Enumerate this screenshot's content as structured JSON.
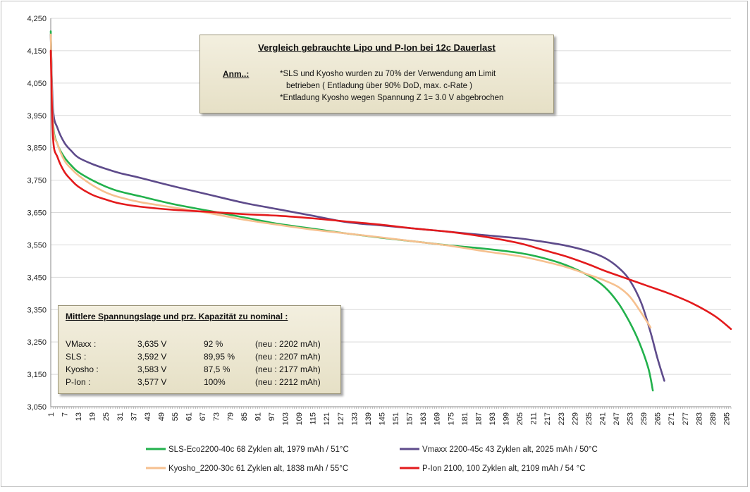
{
  "chart_data": {
    "type": "line",
    "title": "",
    "xlabel": "",
    "ylabel": "",
    "ylim": [
      3.05,
      4.25
    ],
    "xlim": [
      1,
      297
    ],
    "y_ticks": [
      "4,250",
      "4,150",
      "4,050",
      "3,950",
      "3,850",
      "3,750",
      "3,650",
      "3,550",
      "3,450",
      "3,350",
      "3,250",
      "3,150",
      "3,050"
    ],
    "y_tick_values": [
      4.25,
      4.15,
      4.05,
      3.95,
      3.85,
      3.75,
      3.65,
      3.55,
      3.45,
      3.35,
      3.25,
      3.15,
      3.05
    ],
    "x_ticks": [
      "1",
      "7",
      "13",
      "19",
      "25",
      "31",
      "37",
      "43",
      "49",
      "55",
      "61",
      "67",
      "73",
      "79",
      "85",
      "91",
      "97",
      "103",
      "109",
      "115",
      "121",
      "127",
      "133",
      "139",
      "145",
      "151",
      "157",
      "163",
      "169",
      "175",
      "181",
      "187",
      "193",
      "199",
      "205",
      "211",
      "217",
      "223",
      "229",
      "235",
      "241",
      "247",
      "253",
      "259",
      "265",
      "271",
      "277",
      "283",
      "289",
      "295"
    ],
    "grid": "horizontal",
    "legend_position": "bottom",
    "series": [
      {
        "name": "SLS-Eco2200-40c 68 Zyklen alt, 1979 mAh / 51°C",
        "color": "#22b14c",
        "points": [
          [
            1,
            4.21
          ],
          [
            2,
            3.93
          ],
          [
            4,
            3.86
          ],
          [
            7,
            3.82
          ],
          [
            10,
            3.795
          ],
          [
            13,
            3.775
          ],
          [
            19,
            3.75
          ],
          [
            25,
            3.73
          ],
          [
            31,
            3.715
          ],
          [
            40,
            3.7
          ],
          [
            55,
            3.675
          ],
          [
            70,
            3.655
          ],
          [
            85,
            3.635
          ],
          [
            100,
            3.615
          ],
          [
            115,
            3.6
          ],
          [
            130,
            3.585
          ],
          [
            145,
            3.572
          ],
          [
            160,
            3.56
          ],
          [
            175,
            3.548
          ],
          [
            190,
            3.538
          ],
          [
            205,
            3.525
          ],
          [
            215,
            3.51
          ],
          [
            225,
            3.488
          ],
          [
            235,
            3.455
          ],
          [
            242,
            3.42
          ],
          [
            248,
            3.37
          ],
          [
            253,
            3.31
          ],
          [
            257,
            3.25
          ],
          [
            261,
            3.17
          ],
          [
            263,
            3.1
          ]
        ]
      },
      {
        "name": "Vmaxx 2200-45c 43 Zyklen alt, 2025 mAh / 50°C",
        "color": "#5e4b8b",
        "points": [
          [
            1,
            4.2
          ],
          [
            2,
            3.97
          ],
          [
            4,
            3.91
          ],
          [
            7,
            3.865
          ],
          [
            10,
            3.84
          ],
          [
            13,
            3.82
          ],
          [
            19,
            3.8
          ],
          [
            25,
            3.785
          ],
          [
            31,
            3.772
          ],
          [
            40,
            3.757
          ],
          [
            55,
            3.73
          ],
          [
            70,
            3.705
          ],
          [
            85,
            3.68
          ],
          [
            100,
            3.66
          ],
          [
            115,
            3.64
          ],
          [
            130,
            3.62
          ],
          [
            145,
            3.61
          ],
          [
            160,
            3.6
          ],
          [
            175,
            3.59
          ],
          [
            190,
            3.58
          ],
          [
            205,
            3.57
          ],
          [
            215,
            3.56
          ],
          [
            225,
            3.548
          ],
          [
            235,
            3.53
          ],
          [
            242,
            3.51
          ],
          [
            248,
            3.48
          ],
          [
            253,
            3.44
          ],
          [
            258,
            3.37
          ],
          [
            262,
            3.28
          ],
          [
            265,
            3.2
          ],
          [
            268,
            3.13
          ]
        ]
      },
      {
        "name": "Kyosho_2200-30c 61 Zyklen alt, 1838 mAh / 55°C",
        "color": "#f6c08f",
        "points": [
          [
            1,
            4.2
          ],
          [
            2,
            3.92
          ],
          [
            4,
            3.86
          ],
          [
            7,
            3.81
          ],
          [
            10,
            3.785
          ],
          [
            13,
            3.765
          ],
          [
            19,
            3.735
          ],
          [
            25,
            3.712
          ],
          [
            31,
            3.697
          ],
          [
            40,
            3.682
          ],
          [
            55,
            3.665
          ],
          [
            70,
            3.648
          ],
          [
            85,
            3.628
          ],
          [
            100,
            3.612
          ],
          [
            115,
            3.597
          ],
          [
            130,
            3.585
          ],
          [
            145,
            3.573
          ],
          [
            160,
            3.56
          ],
          [
            175,
            3.547
          ],
          [
            190,
            3.53
          ],
          [
            205,
            3.515
          ],
          [
            215,
            3.5
          ],
          [
            225,
            3.482
          ],
          [
            235,
            3.458
          ],
          [
            242,
            3.44
          ],
          [
            248,
            3.42
          ],
          [
            253,
            3.39
          ],
          [
            258,
            3.34
          ],
          [
            262,
            3.295
          ]
        ]
      },
      {
        "name": "P-Ion 2100, 100 Zyklen alt, 2109 mAh / 54 °C",
        "color": "#e31a1c",
        "points": [
          [
            1,
            4.15
          ],
          [
            2,
            3.88
          ],
          [
            4,
            3.82
          ],
          [
            7,
            3.775
          ],
          [
            10,
            3.75
          ],
          [
            13,
            3.73
          ],
          [
            19,
            3.705
          ],
          [
            25,
            3.69
          ],
          [
            31,
            3.678
          ],
          [
            40,
            3.668
          ],
          [
            55,
            3.658
          ],
          [
            70,
            3.652
          ],
          [
            85,
            3.645
          ],
          [
            100,
            3.64
          ],
          [
            115,
            3.632
          ],
          [
            130,
            3.622
          ],
          [
            145,
            3.612
          ],
          [
            160,
            3.6
          ],
          [
            175,
            3.59
          ],
          [
            190,
            3.575
          ],
          [
            205,
            3.555
          ],
          [
            215,
            3.535
          ],
          [
            225,
            3.515
          ],
          [
            235,
            3.49
          ],
          [
            242,
            3.47
          ],
          [
            250,
            3.45
          ],
          [
            260,
            3.425
          ],
          [
            270,
            3.4
          ],
          [
            280,
            3.37
          ],
          [
            290,
            3.33
          ],
          [
            297,
            3.29
          ]
        ]
      }
    ],
    "annotations": {
      "note": {
        "title": "Vergleich gebrauchte Lipo und P-Ion bei 12c Dauerlast",
        "label": "Anm..:",
        "line1": "*SLS und Kyosho wurden zu 70% der Verwendung am Limit",
        "line2": "betrieben ( Entladung über 90% DoD, max. c-Rate )",
        "line3": "*Entladung Kyosho wegen Spannung Z 1= 3.0 V abgebrochen"
      },
      "stats": {
        "title": "Mittlere Spannungslage  und  prz. Kapazität zu nominal :",
        "rows": [
          {
            "name": "VMaxx :",
            "voltage": "3,635 V",
            "percent": "92 %",
            "nominal": "(neu : 2202 mAh)"
          },
          {
            "name": "SLS :",
            "voltage": "3,592 V",
            "percent": "89,95 %",
            "nominal": "(neu : 2207 mAh)"
          },
          {
            "name": "Kyosho :",
            "voltage": "3,583 V",
            "percent": "87,5 %",
            "nominal": "(neu : 2177 mAh)"
          },
          {
            "name": "P-Ion :",
            "voltage": "3,577 V",
            "percent": "100%",
            "nominal": "(neu : 2212 mAh)"
          }
        ]
      }
    }
  }
}
